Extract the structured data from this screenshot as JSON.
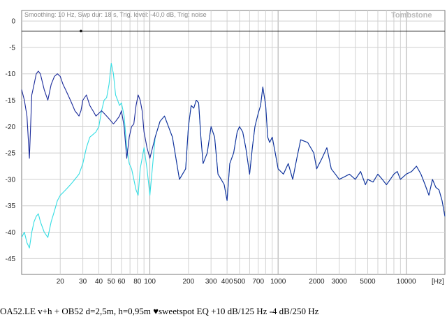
{
  "header": {
    "settings_text": "Smoothing: 10 Hz, Swp dur: 18 s, Trig. level: -40,0 dB, Trig: noise",
    "brand": "Tombstone"
  },
  "caption": "OA52.LE v+h + OB52 d=2,5m, h=0,95m  ♥sweetspot   EQ +10 dB/125 Hz  -4 dB/250 Hz",
  "chart_data": {
    "type": "line",
    "x_scale": "log",
    "xlim": [
      10,
      20000
    ],
    "ylim": [
      -48,
      2
    ],
    "grid": true,
    "legend": "none",
    "xlabel": "",
    "ylabel": "",
    "x_unit_label": "[Hz]",
    "y_ticks": [
      0,
      -5,
      -10,
      -15,
      -20,
      -25,
      -30,
      -35,
      -40,
      -45
    ],
    "y_tick_labels": [
      "0",
      "-5",
      "-10",
      "-15",
      "-20",
      "-25",
      "-30",
      "-35",
      "-40",
      "-45"
    ],
    "x_ticks": [
      20,
      30,
      40,
      50,
      60,
      80,
      100,
      200,
      300,
      400,
      500,
      700,
      1000,
      2000,
      3000,
      5000,
      10000
    ],
    "x_tick_labels": [
      "20",
      "30",
      "40",
      "50",
      "60",
      "80",
      "100",
      "200",
      "300",
      "400",
      "500",
      "700",
      "1000",
      "2000",
      "3000",
      "5000",
      "10000"
    ],
    "reference_line_db": -1.9,
    "marker": {
      "x": 29,
      "y": -1.9
    },
    "series": [
      {
        "color": "#1a2a9a",
        "x": [
          10,
          10.5,
          11,
          11.5,
          12,
          12.5,
          13,
          13.5,
          14,
          15,
          16,
          17,
          18,
          19,
          20,
          21,
          22,
          23,
          24,
          25,
          26,
          27,
          28,
          29,
          30,
          32,
          34,
          36,
          38,
          40,
          42,
          44,
          46,
          48,
          50,
          52,
          54,
          56,
          58,
          60,
          63,
          66,
          69,
          72,
          75,
          78,
          81,
          84,
          87,
          90,
          95,
          100,
          110,
          120,
          130,
          150,
          170,
          190,
          200,
          210,
          220,
          230,
          240,
          250,
          260,
          280,
          300,
          320,
          340,
          360,
          380,
          400,
          420,
          450,
          480,
          500,
          530,
          560,
          600,
          630,
          660,
          700,
          730,
          760,
          800,
          830,
          860,
          900,
          950,
          1000,
          1100,
          1200,
          1300,
          1400,
          1500,
          1700,
          1900,
          2000,
          2200,
          2400,
          2600,
          2800,
          3000,
          3300,
          3600,
          4000,
          4400,
          4800,
          5000,
          5500,
          6000,
          6500,
          7000,
          7500,
          8000,
          8500,
          9000,
          10000,
          11000,
          12000,
          13000,
          14000,
          15000,
          16000,
          17000,
          18000,
          19000,
          20000
        ],
        "y": [
          -13,
          -15,
          -18,
          -26,
          -14,
          -12,
          -10,
          -9.5,
          -10,
          -13,
          -15,
          -12,
          -10.5,
          -10,
          -10.5,
          -12,
          -13,
          -14,
          -15,
          -16,
          -17,
          -17.5,
          -18,
          -17,
          -15,
          -14,
          -16,
          -17,
          -18,
          -17.5,
          -17,
          -17.5,
          -18,
          -18.5,
          -19,
          -19.5,
          -19,
          -18.5,
          -18,
          -17,
          -20,
          -26,
          -22,
          -20,
          -19.5,
          -16,
          -14,
          -15,
          -17,
          -21,
          -24,
          -26,
          -22,
          -19,
          -18,
          -22,
          -30,
          -28,
          -20,
          -16,
          -16.5,
          -15,
          -15.5,
          -22,
          -27,
          -25,
          -20,
          -22,
          -29,
          -30,
          -31,
          -34,
          -27,
          -25,
          -21,
          -20,
          -21,
          -24,
          -29,
          -24,
          -20,
          -17.5,
          -16,
          -12.5,
          -16,
          -22,
          -23,
          -22,
          -25,
          -28,
          -29,
          -27,
          -30,
          -26,
          -22.5,
          -23,
          -25,
          -28,
          -26,
          -24,
          -28,
          -29,
          -30,
          -29.5,
          -29,
          -30,
          -28.5,
          -31,
          -30,
          -30.5,
          -29,
          -30,
          -31,
          -30,
          -29,
          -28.5,
          -30,
          -29,
          -28.5,
          -27.5,
          -29,
          -31,
          -33,
          -30,
          -31.5,
          -32,
          -34,
          -37
        ]
      },
      {
        "color": "#33dde3",
        "x": [
          10,
          10.5,
          11,
          11.5,
          12,
          12.5,
          13,
          13.5,
          14,
          15,
          16,
          17,
          18,
          19,
          20,
          21,
          22,
          23,
          24,
          25,
          26,
          27,
          28,
          29,
          30,
          32,
          34,
          36,
          38,
          40,
          42,
          44,
          46,
          48,
          50,
          52,
          54,
          56,
          58,
          60,
          63,
          66,
          69,
          72,
          75,
          78,
          81,
          84,
          87,
          90,
          95,
          100,
          110,
          120,
          130,
          150,
          170,
          190,
          200,
          210,
          220,
          230,
          240,
          250,
          260,
          280,
          300,
          320,
          340,
          360,
          380,
          400,
          420,
          450,
          480,
          500,
          530,
          560,
          600,
          630,
          660,
          700,
          730,
          760,
          800,
          830,
          860,
          900,
          950,
          1000,
          1100,
          1200,
          1300,
          1400,
          1500,
          1700,
          1900,
          2000,
          2200,
          2400,
          2600,
          2800,
          3000,
          3300,
          3600,
          4000,
          4400,
          4800,
          5000,
          5500,
          6000,
          6500,
          7000,
          7500,
          8000,
          8500,
          9000,
          10000,
          11000,
          12000,
          13000,
          14000,
          15000,
          16000,
          17000,
          18000,
          19000,
          20000
        ],
        "y": [
          -41,
          -40,
          -42,
          -43,
          -40,
          -38,
          -37,
          -36.5,
          -38,
          -40,
          -41,
          -38,
          -36,
          -34,
          -33,
          -32.5,
          -32,
          -31.5,
          -31,
          -30.5,
          -30,
          -29.5,
          -29,
          -28,
          -27,
          -24,
          -22,
          -21.5,
          -21,
          -20,
          -17,
          -15,
          -14.5,
          -12,
          -8,
          -10,
          -14,
          -15,
          -16,
          -15.5,
          -18,
          -24,
          -27,
          -28,
          -30,
          -32,
          -33,
          -28,
          -26,
          -24,
          -28,
          -33,
          -22,
          -19,
          -18,
          -22,
          -30,
          -28,
          -20,
          -16,
          -16.5,
          -15,
          -15.5,
          -22,
          -27,
          -25,
          -20,
          -22,
          -29,
          -30,
          -31,
          -34,
          -27,
          -25,
          -21,
          -20,
          -21,
          -24,
          -29,
          -24,
          -20,
          -17.5,
          -16,
          -12.5,
          -16,
          -22,
          -23,
          -22,
          -25,
          -28,
          -29,
          -27,
          -30,
          -26,
          -22.5,
          -23,
          -25,
          -28,
          -26,
          -24,
          -28,
          -29,
          -30,
          -29.5,
          -29,
          -30,
          -28.5,
          -31,
          -30,
          -30.5,
          -29,
          -30,
          -31,
          -30,
          -29,
          -28.5,
          -30,
          -29,
          -28.5,
          -27.5,
          -29,
          -31,
          -33,
          -30,
          -31.5,
          -32,
          -34,
          -37
        ]
      }
    ]
  }
}
